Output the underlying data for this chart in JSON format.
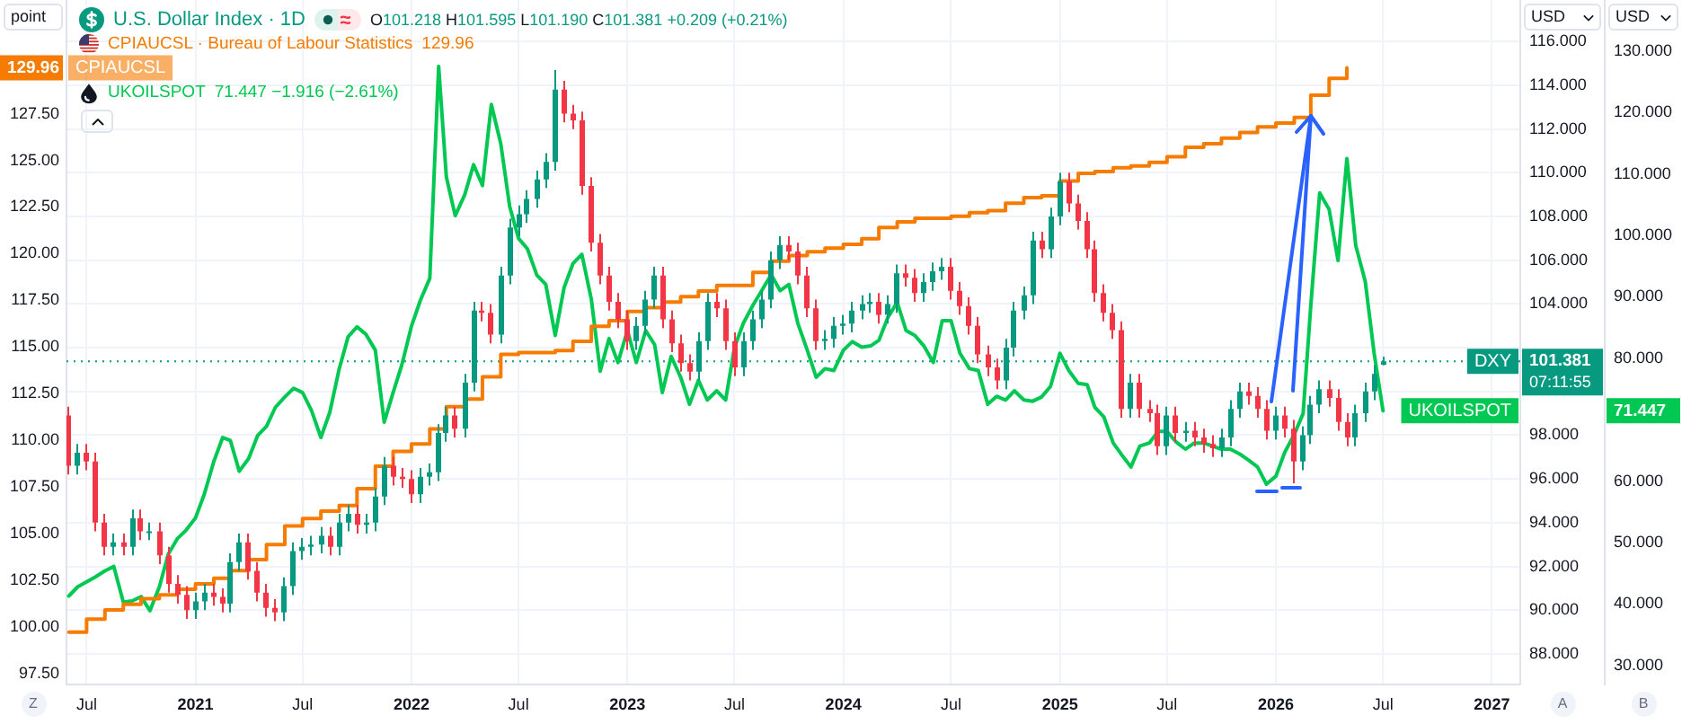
{
  "chart_data": {
    "type": "candlestick",
    "x": [
      "2020-06-01",
      "2020-06-16",
      "2020-07-01",
      "2020-07-16",
      "2020-08-01",
      "2020-08-16",
      "2020-09-01",
      "2020-09-16",
      "2020-10-01",
      "2020-10-16",
      "2020-11-01",
      "2020-11-16",
      "2020-12-01",
      "2020-12-16",
      "2021-01-01",
      "2021-01-16",
      "2021-02-01",
      "2021-02-16",
      "2021-03-01",
      "2021-03-16",
      "2021-04-01",
      "2021-04-16",
      "2021-05-01",
      "2021-05-16",
      "2021-06-01",
      "2021-06-16",
      "2021-07-01",
      "2021-07-16",
      "2021-08-01",
      "2021-08-16",
      "2021-09-01",
      "2021-09-16",
      "2021-10-01",
      "2021-10-16",
      "2021-11-01",
      "2021-11-16",
      "2021-12-01",
      "2021-12-16",
      "2022-01-01",
      "2022-01-16",
      "2022-02-01",
      "2022-02-16",
      "2022-03-01",
      "2022-03-16",
      "2022-04-01",
      "2022-04-16",
      "2022-05-01",
      "2022-05-16",
      "2022-06-01",
      "2022-06-16",
      "2022-07-01",
      "2022-07-16",
      "2022-08-01",
      "2022-08-16",
      "2022-09-01",
      "2022-09-16",
      "2022-10-01",
      "2022-10-16",
      "2022-11-01",
      "2022-11-16",
      "2022-12-01",
      "2022-12-16",
      "2023-01-01",
      "2023-01-16",
      "2023-02-01",
      "2023-02-16",
      "2023-03-01",
      "2023-03-16",
      "2023-04-01",
      "2023-04-16",
      "2023-05-01",
      "2023-05-16",
      "2023-06-01",
      "2023-06-16",
      "2023-07-01",
      "2023-07-16",
      "2023-08-01",
      "2023-08-16",
      "2023-09-01",
      "2023-09-16",
      "2023-10-01",
      "2023-10-16",
      "2023-11-01",
      "2023-11-16",
      "2023-12-01",
      "2023-12-16",
      "2024-01-01",
      "2024-01-16",
      "2024-02-01",
      "2024-02-16",
      "2024-03-01",
      "2024-03-16",
      "2024-04-01",
      "2024-04-16",
      "2024-05-01",
      "2024-05-16",
      "2024-06-01",
      "2024-06-16",
      "2024-07-01",
      "2024-07-16",
      "2024-08-01",
      "2024-08-16",
      "2024-09-01",
      "2024-09-16",
      "2024-10-01",
      "2024-10-16",
      "2024-11-01",
      "2024-11-16",
      "2024-12-01",
      "2024-12-16",
      "2025-01-01",
      "2025-01-16",
      "2025-02-01",
      "2025-02-16",
      "2025-03-01",
      "2025-03-16",
      "2025-04-01",
      "2025-04-16",
      "2025-05-01",
      "2025-05-16",
      "2025-06-01",
      "2025-06-16",
      "2025-07-01",
      "2025-07-16",
      "2025-08-01",
      "2025-08-16",
      "2025-09-01",
      "2025-09-16",
      "2025-10-01",
      "2025-10-16",
      "2025-11-01",
      "2025-11-16",
      "2025-12-01",
      "2025-12-16",
      "2026-01-01",
      "2026-01-16",
      "2026-02-01",
      "2026-02-16",
      "2026-03-01",
      "2026-03-16",
      "2026-04-01",
      "2026-04-16",
      "2026-05-01",
      "2026-05-16",
      "2026-06-01",
      "2026-06-16",
      "2026-07-01"
    ],
    "series": [
      {
        "name": "U.S. Dollar Index · 1D",
        "axis": "y2",
        "colors": [
          "#f23645",
          "#089981",
          "#f23645",
          "#f23645",
          "#f23645",
          "#089981",
          "#f23645",
          "#089981",
          "#f23645",
          "#089981",
          "#f23645",
          "#f23645",
          "#f23645",
          "#f23645",
          "#089981",
          "#089981",
          "#f23645",
          "#f23645",
          "#089981",
          "#089981",
          "#f23645",
          "#f23645",
          "#f23645",
          "#f23645",
          "#089981",
          "#089981",
          "#089981",
          "#089981",
          "#089981",
          "#f23645",
          "#089981",
          "#089981",
          "#f23645",
          "#089981",
          "#089981",
          "#089981",
          "#f23645",
          "#f23645",
          "#f23645",
          "#089981",
          "#089981",
          "#089981",
          "#089981",
          "#f23645",
          "#089981",
          "#089981",
          "#f23645",
          "#f23645",
          "#089981",
          "#089981",
          "#089981",
          "#089981",
          "#089981",
          "#089981",
          "#089981",
          "#f23645",
          "#f23645",
          "#f23645",
          "#f23645",
          "#f23645",
          "#f23645",
          "#f23645",
          "#f23645",
          "#089981",
          "#089981",
          "#089981",
          "#f23645",
          "#f23645",
          "#f23645",
          "#f23645",
          "#089981",
          "#089981",
          "#f23645",
          "#f23645",
          "#f23645",
          "#089981",
          "#089981",
          "#089981",
          "#089981",
          "#089981",
          "#f23645",
          "#f23645",
          "#f23645",
          "#f23645",
          "#089981",
          "#089981",
          "#089981",
          "#089981",
          "#089981",
          "#089981",
          "#f23645",
          "#089981",
          "#089981",
          "#f23645",
          "#f23645",
          "#089981",
          "#089981",
          "#089981",
          "#f23645",
          "#f23645",
          "#f23645",
          "#f23645",
          "#f23645",
          "#f23645",
          "#089981",
          "#089981",
          "#089981",
          "#089981",
          "#f23645",
          "#089981",
          "#089981",
          "#f23645",
          "#f23645",
          "#f23645",
          "#f23645",
          "#f23645",
          "#f23645",
          "#f23645",
          "#089981",
          "#f23645",
          "#f23645",
          "#f23645",
          "#089981",
          "#f23645",
          "#089981",
          "#f23645",
          "#f23645",
          "#f23645",
          "#089981",
          "#089981",
          "#089981",
          "#f23645",
          "#f23645",
          "#f23645",
          "#089981",
          "#f23645",
          "#f23645",
          "#089981",
          "#089981",
          "#089981",
          "#f23645",
          "#f23645",
          "#f23645",
          "#089981",
          "#089981",
          "#089981",
          "#089981"
        ],
        "ohlc": [
          [
            98.9,
            99.3,
            96.2,
            96.6
          ],
          [
            96.6,
            97.6,
            96.2,
            97.2
          ],
          [
            97.2,
            97.6,
            96.4,
            96.8
          ],
          [
            96.8,
            97.2,
            93.6,
            94.0
          ],
          [
            94.0,
            94.4,
            92.5,
            92.9
          ],
          [
            92.9,
            93.5,
            92.5,
            93.1
          ],
          [
            93.1,
            93.5,
            92.5,
            92.9
          ],
          [
            92.9,
            94.6,
            92.5,
            94.2
          ],
          [
            94.2,
            94.6,
            93.2,
            93.6
          ],
          [
            93.6,
            94.0,
            93.2,
            93.6
          ],
          [
            93.6,
            94.0,
            92.1,
            92.5
          ],
          [
            92.5,
            92.9,
            90.8,
            91.2
          ],
          [
            91.2,
            91.6,
            90.3,
            90.7
          ],
          [
            90.7,
            91.1,
            89.6,
            90.0
          ],
          [
            90.0,
            90.8,
            89.6,
            90.4
          ],
          [
            90.4,
            91.2,
            90.0,
            90.8
          ],
          [
            90.8,
            91.2,
            90.2,
            90.6
          ],
          [
            90.6,
            91.0,
            89.9,
            90.3
          ],
          [
            90.3,
            92.6,
            89.9,
            92.2
          ],
          [
            92.2,
            93.5,
            91.8,
            93.1
          ],
          [
            93.1,
            93.5,
            91.4,
            91.8
          ],
          [
            91.8,
            92.2,
            90.4,
            90.8
          ],
          [
            90.8,
            91.2,
            89.7,
            90.1
          ],
          [
            90.1,
            90.5,
            89.5,
            89.9
          ],
          [
            89.9,
            91.5,
            89.5,
            91.1
          ],
          [
            91.1,
            93.1,
            90.7,
            92.7
          ],
          [
            92.7,
            93.3,
            92.3,
            92.9
          ],
          [
            92.9,
            93.4,
            92.5,
            93.0
          ],
          [
            93.0,
            93.8,
            92.6,
            93.4
          ],
          [
            93.4,
            93.8,
            92.5,
            92.9
          ],
          [
            92.9,
            94.4,
            92.5,
            94.0
          ],
          [
            94.0,
            94.8,
            93.6,
            94.4
          ],
          [
            94.4,
            94.8,
            93.5,
            93.9
          ],
          [
            93.9,
            94.4,
            93.5,
            94.0
          ],
          [
            94.0,
            95.6,
            93.6,
            95.2
          ],
          [
            95.2,
            97.0,
            94.8,
            96.6
          ],
          [
            96.6,
            97.0,
            95.7,
            96.1
          ],
          [
            96.1,
            96.5,
            95.6,
            96.0
          ],
          [
            96.0,
            96.4,
            94.9,
            95.3
          ],
          [
            95.3,
            96.5,
            94.9,
            96.1
          ],
          [
            96.1,
            96.7,
            95.7,
            96.3
          ],
          [
            96.3,
            98.5,
            95.9,
            98.1
          ],
          [
            98.1,
            99.3,
            97.7,
            98.9
          ],
          [
            98.9,
            99.3,
            97.9,
            98.3
          ],
          [
            98.3,
            100.8,
            97.9,
            100.4
          ],
          [
            100.4,
            104.1,
            100.0,
            103.7
          ],
          [
            103.7,
            104.1,
            103.2,
            103.6
          ],
          [
            103.6,
            104.0,
            102.2,
            102.6
          ],
          [
            102.6,
            105.7,
            102.2,
            105.3
          ],
          [
            105.3,
            107.9,
            104.9,
            107.5
          ],
          [
            107.5,
            108.5,
            107.1,
            108.1
          ],
          [
            108.1,
            109.2,
            107.7,
            108.8
          ],
          [
            108.8,
            110.1,
            108.4,
            109.7
          ],
          [
            109.7,
            110.9,
            109.3,
            110.5
          ],
          [
            110.5,
            114.7,
            110.1,
            113.8
          ],
          [
            113.8,
            114.2,
            112.3,
            112.7
          ],
          [
            112.7,
            113.1,
            112.0,
            112.4
          ],
          [
            112.4,
            112.8,
            109.0,
            109.4
          ],
          [
            109.4,
            109.8,
            106.4,
            106.8
          ],
          [
            106.8,
            107.2,
            104.9,
            105.3
          ],
          [
            105.3,
            105.7,
            103.7,
            104.1
          ],
          [
            104.1,
            104.5,
            102.9,
            103.3
          ],
          [
            103.3,
            103.7,
            101.9,
            102.3
          ],
          [
            102.3,
            103.4,
            101.9,
            103.0
          ],
          [
            103.0,
            104.6,
            102.6,
            104.2
          ],
          [
            104.2,
            105.7,
            103.8,
            105.3
          ],
          [
            105.3,
            105.7,
            102.9,
            103.3
          ],
          [
            103.3,
            103.7,
            101.8,
            102.2
          ],
          [
            102.2,
            102.6,
            100.9,
            101.3
          ],
          [
            101.3,
            101.7,
            100.5,
            100.9
          ],
          [
            100.9,
            102.7,
            100.5,
            102.3
          ],
          [
            102.3,
            104.5,
            101.9,
            104.1
          ],
          [
            104.1,
            104.5,
            103.4,
            103.8
          ],
          [
            103.8,
            104.2,
            101.9,
            102.3
          ],
          [
            102.3,
            102.7,
            100.7,
            101.1
          ],
          [
            101.1,
            102.7,
            100.7,
            102.3
          ],
          [
            102.3,
            103.7,
            101.9,
            103.3
          ],
          [
            103.3,
            104.6,
            102.9,
            104.2
          ],
          [
            104.2,
            106.4,
            103.8,
            106.0
          ],
          [
            106.0,
            107.1,
            105.6,
            106.7
          ],
          [
            106.7,
            107.1,
            106.0,
            106.4
          ],
          [
            106.4,
            106.8,
            104.9,
            105.3
          ],
          [
            105.3,
            105.7,
            103.4,
            103.8
          ],
          [
            103.8,
            104.2,
            101.9,
            102.3
          ],
          [
            102.3,
            102.8,
            101.9,
            102.4
          ],
          [
            102.4,
            103.4,
            102.0,
            103.0
          ],
          [
            103.0,
            103.5,
            102.6,
            103.1
          ],
          [
            103.1,
            104.1,
            102.7,
            103.7
          ],
          [
            103.7,
            104.4,
            103.3,
            104.0
          ],
          [
            104.0,
            104.5,
            103.6,
            104.1
          ],
          [
            104.1,
            104.5,
            103.1,
            103.5
          ],
          [
            103.5,
            104.4,
            103.1,
            104.0
          ],
          [
            104.0,
            105.8,
            103.6,
            105.4
          ],
          [
            105.4,
            105.8,
            104.8,
            105.2
          ],
          [
            105.2,
            105.6,
            104.1,
            104.5
          ],
          [
            104.5,
            105.4,
            104.1,
            105.0
          ],
          [
            105.0,
            105.9,
            104.6,
            105.5
          ],
          [
            105.5,
            106.1,
            105.1,
            105.7
          ],
          [
            105.7,
            106.1,
            104.2,
            104.6
          ],
          [
            104.6,
            105.0,
            103.5,
            103.9
          ],
          [
            103.9,
            104.3,
            102.6,
            103.0
          ],
          [
            103.0,
            103.4,
            101.3,
            101.7
          ],
          [
            101.7,
            102.1,
            100.7,
            101.1
          ],
          [
            101.1,
            101.5,
            100.1,
            100.5
          ],
          [
            100.5,
            102.4,
            100.1,
            102.0
          ],
          [
            102.0,
            104.1,
            101.6,
            103.7
          ],
          [
            103.7,
            104.8,
            103.3,
            104.4
          ],
          [
            104.4,
            107.3,
            104.0,
            106.9
          ],
          [
            106.9,
            107.3,
            106.1,
            106.5
          ],
          [
            106.5,
            108.4,
            106.1,
            108.0
          ],
          [
            108.0,
            110.0,
            107.6,
            109.6
          ],
          [
            109.6,
            110.0,
            108.2,
            108.6
          ],
          [
            108.6,
            109.0,
            107.4,
            107.8
          ],
          [
            107.8,
            108.2,
            106.1,
            106.5
          ],
          [
            106.5,
            106.9,
            104.1,
            104.5
          ],
          [
            104.5,
            104.9,
            103.2,
            103.6
          ],
          [
            103.6,
            104.0,
            102.4,
            102.8
          ],
          [
            102.8,
            103.2,
            98.8,
            99.2
          ],
          [
            99.2,
            100.8,
            98.8,
            100.4
          ],
          [
            100.4,
            100.8,
            98.8,
            99.2
          ],
          [
            99.2,
            99.6,
            98.6,
            99.0
          ],
          [
            99.0,
            99.4,
            97.1,
            97.5
          ],
          [
            97.5,
            99.3,
            97.1,
            98.9
          ],
          [
            98.9,
            99.3,
            97.7,
            98.1
          ],
          [
            98.1,
            98.6,
            97.7,
            98.2
          ],
          [
            98.2,
            98.6,
            97.5,
            97.9
          ],
          [
            97.9,
            98.3,
            97.2,
            97.6
          ],
          [
            97.6,
            98.0,
            97.0,
            97.4
          ],
          [
            97.4,
            98.3,
            97.0,
            97.9
          ],
          [
            97.9,
            99.6,
            97.5,
            99.2
          ],
          [
            99.2,
            100.4,
            98.8,
            100.0
          ],
          [
            100.0,
            100.4,
            99.4,
            99.8
          ],
          [
            99.8,
            100.2,
            98.8,
            99.2
          ],
          [
            99.2,
            99.6,
            97.8,
            98.2
          ],
          [
            98.2,
            99.3,
            97.8,
            98.9
          ],
          [
            98.9,
            99.3,
            97.9,
            98.3
          ],
          [
            98.3,
            98.7,
            95.8,
            96.8
          ],
          [
            96.8,
            98.4,
            96.4,
            98.0
          ],
          [
            98.0,
            99.8,
            97.6,
            99.4
          ],
          [
            99.4,
            100.5,
            99.0,
            100.1
          ],
          [
            100.1,
            100.5,
            99.3,
            99.7
          ],
          [
            99.7,
            100.1,
            98.2,
            98.6
          ],
          [
            98.6,
            99.0,
            97.5,
            97.9
          ],
          [
            97.9,
            99.4,
            97.5,
            99.0
          ],
          [
            99.0,
            100.4,
            98.6,
            100.0
          ],
          [
            100.0,
            101.2,
            99.6,
            100.8
          ],
          [
            101.218,
            101.595,
            101.19,
            101.381
          ]
        ]
      },
      {
        "type": "step",
        "name": "CPIAUCSL · Bureau of Labour Statistics",
        "axis": "y",
        "color": "#f57c00",
        "x": [
          "2020-06",
          "2020-07",
          "2020-08",
          "2020-09",
          "2020-10",
          "2020-11",
          "2020-12",
          "2021-01",
          "2021-02",
          "2021-03",
          "2021-04",
          "2021-05",
          "2021-06",
          "2021-07",
          "2021-08",
          "2021-09",
          "2021-10",
          "2021-11",
          "2021-12",
          "2022-01",
          "2022-02",
          "2022-03",
          "2022-04",
          "2022-05",
          "2022-06",
          "2022-07",
          "2022-08",
          "2022-09",
          "2022-10",
          "2022-11",
          "2022-12",
          "2023-01",
          "2023-02",
          "2023-03",
          "2023-04",
          "2023-05",
          "2023-06",
          "2023-07",
          "2023-08",
          "2023-09",
          "2023-10",
          "2023-11",
          "2023-12",
          "2024-01",
          "2024-02",
          "2024-03",
          "2024-04",
          "2024-05",
          "2024-06",
          "2024-07",
          "2024-08",
          "2024-09",
          "2024-10",
          "2024-11",
          "2024-12",
          "2025-01",
          "2025-02",
          "2025-03",
          "2025-04",
          "2025-05",
          "2025-06",
          "2025-07",
          "2025-08",
          "2025-09",
          "2025-10",
          "2025-11",
          "2025-12",
          "2026-01",
          "2026-02",
          "2026-03",
          "2026-04",
          "2026-05"
        ],
        "values": [
          99.7,
          100.4,
          100.9,
          101.2,
          101.5,
          101.7,
          102.0,
          102.3,
          102.6,
          103.0,
          103.6,
          104.4,
          105.4,
          105.8,
          106.2,
          106.5,
          107.4,
          108.6,
          109.4,
          109.8,
          110.6,
          111.8,
          112.2,
          113.4,
          114.6,
          114.7,
          114.7,
          114.8,
          115.3,
          116.1,
          116.4,
          116.9,
          117.1,
          117.4,
          117.7,
          118.0,
          118.3,
          118.3,
          119.0,
          119.6,
          119.9,
          120.1,
          120.3,
          120.5,
          120.8,
          121.4,
          121.7,
          121.9,
          121.9,
          122.0,
          122.2,
          122.3,
          122.7,
          123.0,
          123.1,
          123.9,
          124.3,
          124.4,
          124.6,
          124.7,
          124.9,
          125.2,
          125.7,
          125.9,
          126.2,
          126.5,
          126.8,
          127.0,
          127.3,
          128.5,
          129.4,
          129.96
        ]
      },
      {
        "type": "line",
        "name": "UKOILSPOT",
        "axis": "y3",
        "color": "#00c853",
        "values": [
          41.3,
          42.8,
          43.6,
          44.4,
          45.4,
          46.1,
          40.3,
          40.5,
          41.2,
          38.9,
          42.8,
          48.1,
          50.6,
          52.0,
          54.0,
          57.9,
          63.2,
          67.1,
          66.6,
          61.6,
          63.7,
          67.4,
          68.9,
          72.0,
          73.7,
          75.1,
          74.4,
          71.5,
          67.1,
          71.2,
          78.3,
          83.5,
          85.1,
          83.9,
          81.3,
          69.6,
          74.4,
          79.0,
          85.2,
          89.4,
          93.0,
          127.5,
          109.5,
          103.2,
          106.6,
          111.5,
          108.1,
          121.3,
          114.9,
          104.7,
          99.5,
          97.8,
          93.5,
          92.0,
          83.7,
          91.5,
          95.4,
          96.9,
          89.6,
          77.9,
          83.2,
          79.3,
          84.5,
          79.3,
          84.5,
          82.2,
          74.4,
          80.3,
          76.9,
          72.5,
          76.4,
          73.2,
          74.7,
          73.2,
          81.8,
          85.7,
          88.6,
          91.0,
          93.6,
          91.0,
          92.0,
          85.7,
          81.3,
          76.9,
          78.3,
          78.0,
          81.3,
          82.7,
          81.8,
          82.0,
          82.9,
          86.6,
          89.1,
          84.5,
          83.7,
          82.0,
          79.3,
          86.1,
          86.1,
          80.8,
          78.3,
          78.0,
          72.5,
          73.8,
          73.2,
          74.7,
          73.2,
          73.0,
          73.7,
          75.4,
          80.8,
          78.0,
          75.9,
          75.7,
          72.0,
          70.5,
          66.2,
          64.2,
          62.3,
          65.7,
          66.2,
          68.1,
          68.1,
          66.4,
          65.2,
          66.2,
          66.2,
          65.7,
          65.2,
          65.2,
          64.4,
          63.4,
          62.3,
          59.5,
          60.8,
          64.7,
          67.6,
          71.0,
          88.6,
          106.9,
          104.2,
          95.9,
          112.5,
          98.3,
          92.5,
          80.8,
          71.447
        ]
      }
    ],
    "xlim": [
      "2020-05-28",
      "2027-02-18"
    ],
    "xticks": [
      {
        "value": "2020-07",
        "label": "Jul"
      },
      "2021",
      {
        "value": "2021-07",
        "label": "Jul"
      },
      "2022",
      {
        "value": "2022-07",
        "label": "Jul"
      },
      "2023",
      {
        "value": "2023-07",
        "label": "Jul"
      },
      "2024",
      {
        "value": "2024-07",
        "label": "Jul"
      },
      "2025",
      {
        "value": "2025-07",
        "label": "Jul"
      },
      "2026",
      {
        "value": "2026-07",
        "label": "Jul"
      },
      "2027"
    ],
    "ylabel": "point",
    "ylim": [
      96.9,
      133.6
    ],
    "yticks": [
      {
        "value": 97.5,
        "label": "97.50"
      },
      {
        "value": 100,
        "label": "100.00"
      },
      {
        "value": 102.5,
        "label": "102.50"
      },
      {
        "value": 105,
        "label": "105.00"
      },
      {
        "value": 107.5,
        "label": "107.50"
      },
      {
        "value": 110,
        "label": "110.00"
      },
      {
        "value": 112.5,
        "label": "112.50"
      },
      {
        "value": 115,
        "label": "115.00"
      },
      {
        "value": 117.5,
        "label": "117.50"
      },
      {
        "value": 120,
        "label": "120.00"
      },
      {
        "value": 122.5,
        "label": "122.50"
      },
      {
        "value": 125,
        "label": "125.00"
      },
      {
        "value": 127.5,
        "label": "127.50"
      },
      {
        "value": 129.96,
        "label": "129.96"
      }
    ],
    "y2label": "USD",
    "y2lim": [
      86.6,
      117.9
    ],
    "y2ticks": [
      {
        "value": 88,
        "label": "88.000"
      },
      {
        "value": 90,
        "label": "90.000"
      },
      {
        "value": 92,
        "label": "92.000"
      },
      {
        "value": 94,
        "label": "94.000"
      },
      {
        "value": 96,
        "label": "96.000"
      },
      {
        "value": 98,
        "label": "98.000"
      },
      {
        "value": 100,
        "label": null
      },
      {
        "value": 101.381,
        "label": "101.381"
      },
      {
        "value": 102,
        "label": null
      },
      {
        "value": 104,
        "label": "104.000"
      },
      {
        "value": 106,
        "label": "106.000"
      },
      {
        "value": 108,
        "label": "108.000"
      },
      {
        "value": 110,
        "label": "110.000"
      },
      {
        "value": 112,
        "label": "112.000"
      },
      {
        "value": 114,
        "label": "114.000"
      },
      {
        "value": 116,
        "label": "116.000"
      }
    ],
    "y3label": "USD",
    "y3lim": [
      26.9,
      138.3
    ],
    "y3ticks": [
      {
        "value": 30,
        "label": "30.000"
      },
      {
        "value": 40,
        "label": "40.000"
      },
      {
        "value": 50,
        "label": "50.000"
      },
      {
        "value": 60,
        "label": "60.000"
      },
      {
        "value": 71.447,
        "label": "71.447"
      },
      {
        "value": 80,
        "label": "80.000"
      },
      {
        "value": 90,
        "label": "90.000"
      },
      {
        "value": 100,
        "label": "100.000"
      },
      {
        "value": 110,
        "label": "110.000"
      },
      {
        "value": 120,
        "label": "120.000"
      },
      {
        "value": 130,
        "label": "130.000"
      }
    ],
    "ref_lines": [
      {
        "axis": "y2",
        "value": 101.381,
        "label": "DXY",
        "line_style": "dotted",
        "color": "#089981"
      }
    ],
    "annotations": [
      "O101.218 H101.595 L101.190 C101.381 +0.209 (+0.21%)",
      "129.96",
      "71.447 −1.916 (−2.61%)",
      "CPIAUCSL",
      "07:11:55",
      "UKOILSPOT",
      "Z",
      "A",
      "B"
    ],
    "legend": "top left",
    "grid": true,
    "marker": "none"
  }
}
